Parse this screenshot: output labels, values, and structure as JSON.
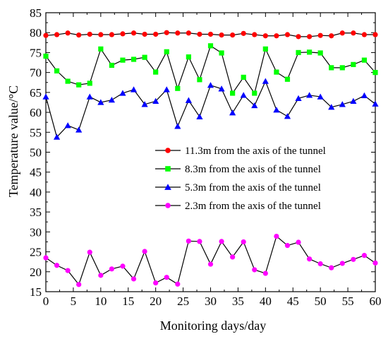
{
  "chart_data": {
    "type": "line",
    "xlabel": "Monitoring days/day",
    "ylabel": "Temperature value/°C",
    "xlim": [
      0,
      60
    ],
    "ylim": [
      15,
      85
    ],
    "xticks": [
      0,
      5,
      10,
      15,
      20,
      25,
      30,
      35,
      40,
      45,
      50,
      55,
      60
    ],
    "yticks": [
      15,
      20,
      25,
      30,
      35,
      40,
      45,
      50,
      55,
      60,
      65,
      70,
      75,
      80,
      85
    ],
    "grid": false,
    "legend_position": "center-right",
    "x": [
      0,
      2,
      4,
      6,
      8,
      10,
      12,
      14,
      16,
      18,
      20,
      22,
      24,
      26,
      28,
      30,
      32,
      34,
      36,
      38,
      40,
      42,
      44,
      46,
      48,
      50,
      52,
      54,
      56,
      58,
      60
    ],
    "series": [
      {
        "name": "11.3m from the axis of the tunnel",
        "color": "#ff0000",
        "marker": "circle",
        "values": [
          79.3,
          79.5,
          79.9,
          79.4,
          79.6,
          79.5,
          79.5,
          79.7,
          79.9,
          79.6,
          79.6,
          80.0,
          79.9,
          79.9,
          79.6,
          79.6,
          79.4,
          79.4,
          79.8,
          79.5,
          79.2,
          79.2,
          79.5,
          79.0,
          79.0,
          79.3,
          79.2,
          79.9,
          79.9,
          79.5,
          79.5
        ]
      },
      {
        "name": "8.3m from the axis of the tunnel",
        "color": "#00ff00",
        "marker": "square",
        "values": [
          74.1,
          70.4,
          67.8,
          66.9,
          67.3,
          75.9,
          71.8,
          73.1,
          73.3,
          73.8,
          70.1,
          75.2,
          66.0,
          73.9,
          68.2,
          76.7,
          74.9,
          64.8,
          68.8,
          64.8,
          75.9,
          70.1,
          68.3,
          75.0,
          75.1,
          74.9,
          71.2,
          71.2,
          72.0,
          73.1,
          70.0
        ]
      },
      {
        "name": "5.3m from the axis of the tunnel",
        "color": "#0000ff",
        "marker": "triangle",
        "values": [
          63.9,
          53.8,
          56.7,
          55.6,
          63.9,
          62.5,
          63.1,
          64.8,
          65.7,
          62.0,
          62.8,
          65.7,
          56.5,
          63.0,
          58.9,
          66.8,
          65.9,
          59.9,
          64.3,
          61.7,
          67.8,
          60.6,
          59.0,
          63.5,
          64.3,
          63.9,
          61.3,
          62.0,
          62.8,
          64.2,
          62.1
        ]
      },
      {
        "name": "2.3m from the axis of the tunnel",
        "color": "#ff00ff",
        "marker": "circle",
        "values": [
          23.5,
          21.6,
          20.3,
          16.8,
          24.9,
          19.1,
          20.7,
          21.4,
          18.2,
          25.1,
          17.2,
          18.6,
          16.9,
          27.7,
          27.6,
          21.9,
          27.6,
          23.7,
          27.5,
          20.5,
          19.6,
          28.9,
          26.6,
          27.4,
          23.2,
          22.0,
          21.0,
          22.1,
          23.1,
          24.1,
          22.2
        ]
      }
    ]
  }
}
